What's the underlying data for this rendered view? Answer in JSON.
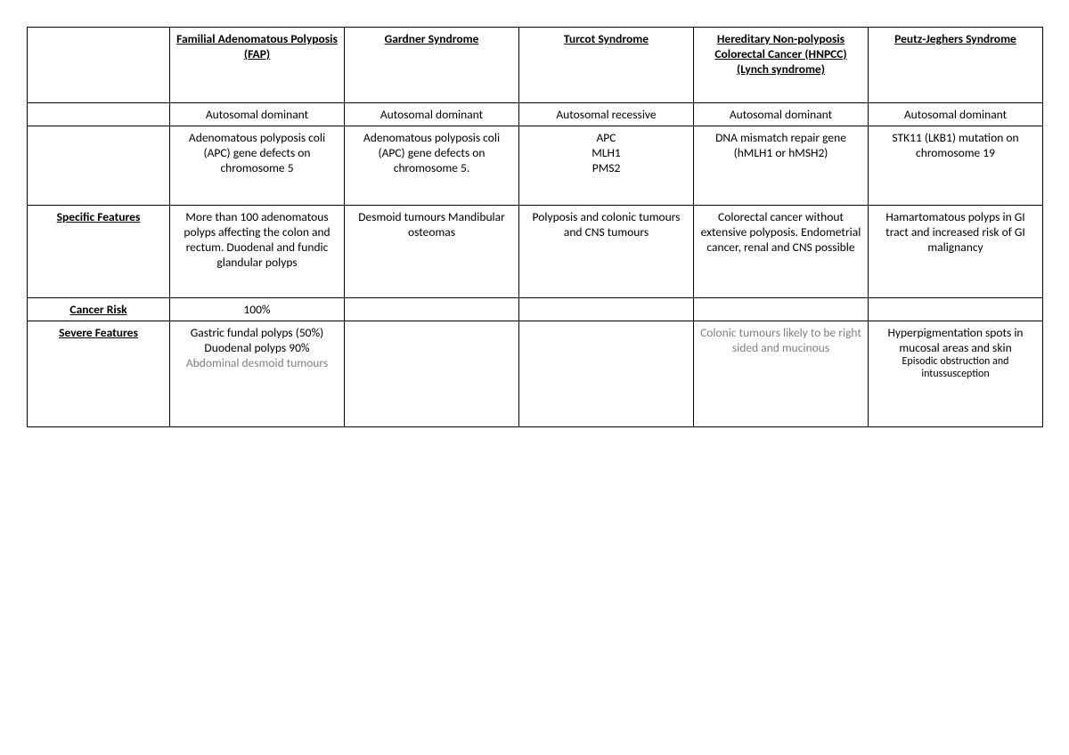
{
  "columns": [
    "Familial Adenomatous Polyposis (FAP)",
    "Gardner Syndrome",
    "Turcot Syndrome",
    "Hereditary Non-polyposis Colorectal Cancer (HNPCC) (Lynch syndrome)",
    "Peutz-Jeghers Syndrome"
  ],
  "rows": {
    "inheritance": {
      "label": "",
      "cells": [
        "Autosomal dominant",
        "Autosomal dominant",
        "Autosomal recessive",
        "Autosomal dominant",
        "Autosomal dominant"
      ]
    },
    "genes": {
      "label": "",
      "cells": [
        "Adenomatous polyposis coli (APC) gene defects on chromosome 5",
        "Adenomatous polyposis coli (APC) gene defects on chromosome 5.",
        "APC\nMLH1\nPMS2",
        "DNA mismatch repair gene (hMLH1 or hMSH2)",
        "STK11 (LKB1) mutation on chromosome 19"
      ]
    },
    "specific": {
      "label": "Specific Features",
      "cells": [
        "More than 100 adenomatous polyps affecting the colon and rectum. Duodenal and fundic glandular polyps",
        "Desmoid tumours Mandibular osteomas",
        "Polyposis and colonic tumours and CNS tumours",
        "Colorectal cancer without extensive polyposis. Endometrial cancer, renal and CNS possible",
        "Hamartomatous polyps in GI tract and increased risk of GI malignancy"
      ]
    },
    "cancer_risk": {
      "label": "Cancer Risk ",
      "cells": [
        "100%",
        "",
        "",
        "",
        ""
      ]
    },
    "severe": {
      "label": "Severe Features",
      "fap_main": "Gastric fundal polyps (50%) Duodenal polyps 90%",
      "fap_grey": "Abdominal desmoid tumours",
      "hnpcc_grey": "Colonic tumours likely to be right sided and mucinous",
      "pj_main": "Hyperpigmentation spots in mucosal areas and skin",
      "pj_sub": "Episodic obstruction and intussusception"
    }
  }
}
